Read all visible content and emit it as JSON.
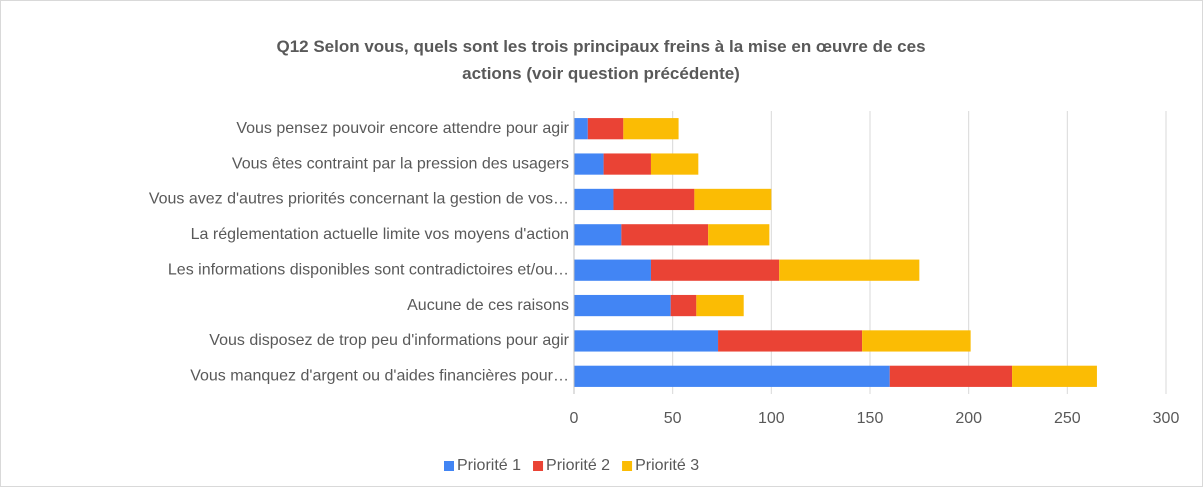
{
  "chart_data": {
    "type": "stacked_bar_horizontal",
    "title": "Q12 Selon vous, quels sont les trois principaux freins à la mise en œuvre de ces actions (voir question précédente)",
    "categories": [
      "Vous pensez pouvoir encore attendre pour agir",
      "Vous êtes contraint par la pression des usagers",
      "Vous avez d'autres priorités concernant la gestion de vos…",
      "La réglementation actuelle limite vos moyens d'action",
      "Les informations disponibles sont contradictoires et/ou…",
      "Aucune de ces raisons",
      "Vous disposez de trop peu d'informations pour agir",
      "Vous manquez d'argent ou d'aides financières pour…"
    ],
    "series": [
      {
        "name": "Priorité 1",
        "color": "#4285f4",
        "values": [
          7,
          15,
          20,
          24,
          39,
          49,
          73,
          160
        ]
      },
      {
        "name": "Priorité 2",
        "color": "#ea4335",
        "values": [
          18,
          24,
          41,
          44,
          65,
          13,
          73,
          62
        ]
      },
      {
        "name": "Priorité 3",
        "color": "#fbbc04",
        "values": [
          28,
          24,
          39,
          31,
          71,
          24,
          55,
          43
        ]
      }
    ],
    "xlim": [
      0,
      300
    ],
    "xticks": [
      0,
      50,
      100,
      150,
      200,
      250,
      300
    ],
    "grid": true,
    "legend": "bottom"
  }
}
